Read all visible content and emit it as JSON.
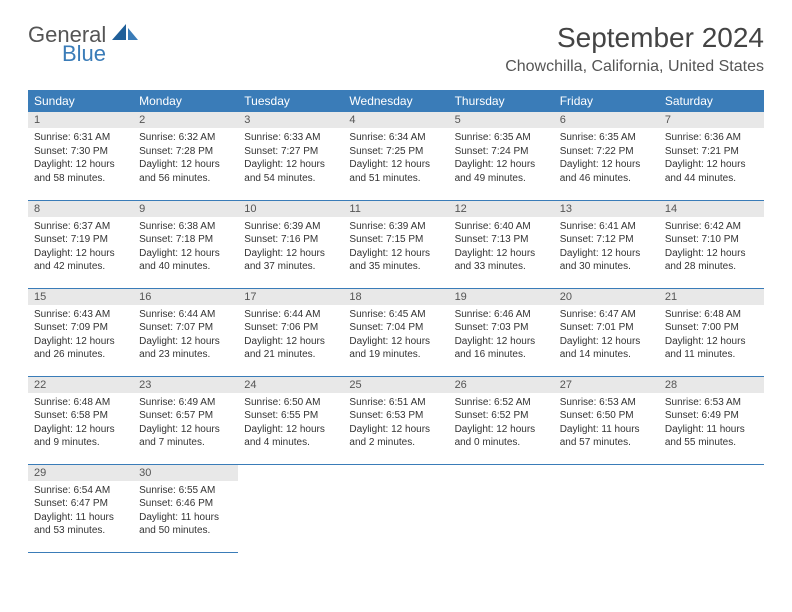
{
  "logo": {
    "general": "General",
    "blue": "Blue",
    "general_color": "#555555",
    "blue_color": "#3a7cb8"
  },
  "title": "September 2024",
  "location": "Chowchilla, California, United States",
  "header_bg": "#3a7cb8",
  "daynum_bg": "#e8e8e8",
  "border_color": "#3a7cb8",
  "weekdays": [
    "Sunday",
    "Monday",
    "Tuesday",
    "Wednesday",
    "Thursday",
    "Friday",
    "Saturday"
  ],
  "weeks": [
    [
      {
        "n": "1",
        "sunrise": "Sunrise: 6:31 AM",
        "sunset": "Sunset: 7:30 PM",
        "daylight": "Daylight: 12 hours and 58 minutes."
      },
      {
        "n": "2",
        "sunrise": "Sunrise: 6:32 AM",
        "sunset": "Sunset: 7:28 PM",
        "daylight": "Daylight: 12 hours and 56 minutes."
      },
      {
        "n": "3",
        "sunrise": "Sunrise: 6:33 AM",
        "sunset": "Sunset: 7:27 PM",
        "daylight": "Daylight: 12 hours and 54 minutes."
      },
      {
        "n": "4",
        "sunrise": "Sunrise: 6:34 AM",
        "sunset": "Sunset: 7:25 PM",
        "daylight": "Daylight: 12 hours and 51 minutes."
      },
      {
        "n": "5",
        "sunrise": "Sunrise: 6:35 AM",
        "sunset": "Sunset: 7:24 PM",
        "daylight": "Daylight: 12 hours and 49 minutes."
      },
      {
        "n": "6",
        "sunrise": "Sunrise: 6:35 AM",
        "sunset": "Sunset: 7:22 PM",
        "daylight": "Daylight: 12 hours and 46 minutes."
      },
      {
        "n": "7",
        "sunrise": "Sunrise: 6:36 AM",
        "sunset": "Sunset: 7:21 PM",
        "daylight": "Daylight: 12 hours and 44 minutes."
      }
    ],
    [
      {
        "n": "8",
        "sunrise": "Sunrise: 6:37 AM",
        "sunset": "Sunset: 7:19 PM",
        "daylight": "Daylight: 12 hours and 42 minutes."
      },
      {
        "n": "9",
        "sunrise": "Sunrise: 6:38 AM",
        "sunset": "Sunset: 7:18 PM",
        "daylight": "Daylight: 12 hours and 40 minutes."
      },
      {
        "n": "10",
        "sunrise": "Sunrise: 6:39 AM",
        "sunset": "Sunset: 7:16 PM",
        "daylight": "Daylight: 12 hours and 37 minutes."
      },
      {
        "n": "11",
        "sunrise": "Sunrise: 6:39 AM",
        "sunset": "Sunset: 7:15 PM",
        "daylight": "Daylight: 12 hours and 35 minutes."
      },
      {
        "n": "12",
        "sunrise": "Sunrise: 6:40 AM",
        "sunset": "Sunset: 7:13 PM",
        "daylight": "Daylight: 12 hours and 33 minutes."
      },
      {
        "n": "13",
        "sunrise": "Sunrise: 6:41 AM",
        "sunset": "Sunset: 7:12 PM",
        "daylight": "Daylight: 12 hours and 30 minutes."
      },
      {
        "n": "14",
        "sunrise": "Sunrise: 6:42 AM",
        "sunset": "Sunset: 7:10 PM",
        "daylight": "Daylight: 12 hours and 28 minutes."
      }
    ],
    [
      {
        "n": "15",
        "sunrise": "Sunrise: 6:43 AM",
        "sunset": "Sunset: 7:09 PM",
        "daylight": "Daylight: 12 hours and 26 minutes."
      },
      {
        "n": "16",
        "sunrise": "Sunrise: 6:44 AM",
        "sunset": "Sunset: 7:07 PM",
        "daylight": "Daylight: 12 hours and 23 minutes."
      },
      {
        "n": "17",
        "sunrise": "Sunrise: 6:44 AM",
        "sunset": "Sunset: 7:06 PM",
        "daylight": "Daylight: 12 hours and 21 minutes."
      },
      {
        "n": "18",
        "sunrise": "Sunrise: 6:45 AM",
        "sunset": "Sunset: 7:04 PM",
        "daylight": "Daylight: 12 hours and 19 minutes."
      },
      {
        "n": "19",
        "sunrise": "Sunrise: 6:46 AM",
        "sunset": "Sunset: 7:03 PM",
        "daylight": "Daylight: 12 hours and 16 minutes."
      },
      {
        "n": "20",
        "sunrise": "Sunrise: 6:47 AM",
        "sunset": "Sunset: 7:01 PM",
        "daylight": "Daylight: 12 hours and 14 minutes."
      },
      {
        "n": "21",
        "sunrise": "Sunrise: 6:48 AM",
        "sunset": "Sunset: 7:00 PM",
        "daylight": "Daylight: 12 hours and 11 minutes."
      }
    ],
    [
      {
        "n": "22",
        "sunrise": "Sunrise: 6:48 AM",
        "sunset": "Sunset: 6:58 PM",
        "daylight": "Daylight: 12 hours and 9 minutes."
      },
      {
        "n": "23",
        "sunrise": "Sunrise: 6:49 AM",
        "sunset": "Sunset: 6:57 PM",
        "daylight": "Daylight: 12 hours and 7 minutes."
      },
      {
        "n": "24",
        "sunrise": "Sunrise: 6:50 AM",
        "sunset": "Sunset: 6:55 PM",
        "daylight": "Daylight: 12 hours and 4 minutes."
      },
      {
        "n": "25",
        "sunrise": "Sunrise: 6:51 AM",
        "sunset": "Sunset: 6:53 PM",
        "daylight": "Daylight: 12 hours and 2 minutes."
      },
      {
        "n": "26",
        "sunrise": "Sunrise: 6:52 AM",
        "sunset": "Sunset: 6:52 PM",
        "daylight": "Daylight: 12 hours and 0 minutes."
      },
      {
        "n": "27",
        "sunrise": "Sunrise: 6:53 AM",
        "sunset": "Sunset: 6:50 PM",
        "daylight": "Daylight: 11 hours and 57 minutes."
      },
      {
        "n": "28",
        "sunrise": "Sunrise: 6:53 AM",
        "sunset": "Sunset: 6:49 PM",
        "daylight": "Daylight: 11 hours and 55 minutes."
      }
    ],
    [
      {
        "n": "29",
        "sunrise": "Sunrise: 6:54 AM",
        "sunset": "Sunset: 6:47 PM",
        "daylight": "Daylight: 11 hours and 53 minutes."
      },
      {
        "n": "30",
        "sunrise": "Sunrise: 6:55 AM",
        "sunset": "Sunset: 6:46 PM",
        "daylight": "Daylight: 11 hours and 50 minutes."
      },
      null,
      null,
      null,
      null,
      null
    ]
  ]
}
